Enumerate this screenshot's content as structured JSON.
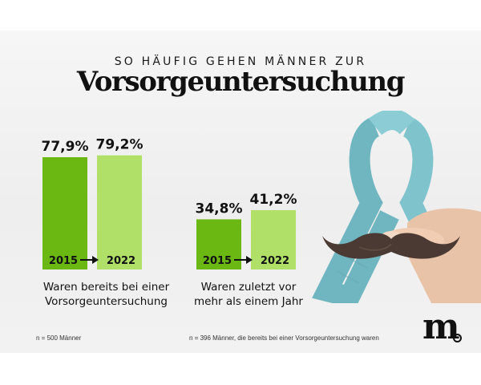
{
  "header": {
    "kicker": "SO HÄUFIG GEHEN MÄNNER ZUR",
    "title": "Vorsorgeuntersuchung"
  },
  "colors": {
    "bar_2015": "#6cb812",
    "bar_2022": "#b1e068",
    "ribbon": "#7fc3cc",
    "mustache": "#4a3a33"
  },
  "chart_data": [
    {
      "type": "bar",
      "categories": [
        "2015",
        "2022"
      ],
      "values": [
        77.9,
        79.2
      ],
      "value_labels": [
        "77,9%",
        "79,2%"
      ],
      "caption_lines": [
        "Waren bereits bei einer",
        "Vorsorgeuntersuchung"
      ],
      "footnote": "n = 500 Männer",
      "ylim": [
        0,
        100
      ],
      "grid": false
    },
    {
      "type": "bar",
      "categories": [
        "2015",
        "2022"
      ],
      "values": [
        34.8,
        41.2
      ],
      "value_labels": [
        "34,8%",
        "41,2%"
      ],
      "caption_lines": [
        "Waren zuletzt vor",
        "mehr als einem Jahr"
      ],
      "footnote": "n = 396 Männer, die bereits bei einer Vorsorgeuntersuchung waren",
      "ylim": [
        0,
        100
      ],
      "grid": false
    }
  ],
  "logo": {
    "letter": "m",
    "icon": "magazine-logo-icon"
  },
  "illustration": {
    "icons": [
      "awareness-ribbon-icon",
      "mustache-icon",
      "hand-icon"
    ]
  }
}
